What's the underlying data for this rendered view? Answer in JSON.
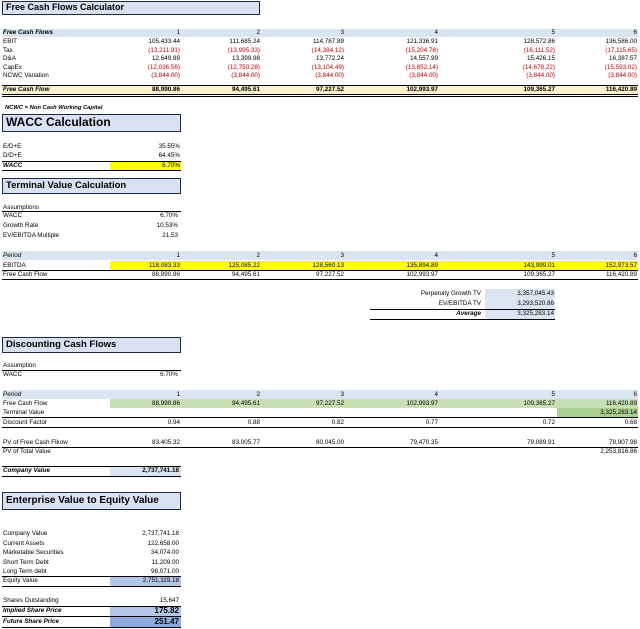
{
  "fcf": {
    "title": "Free Cash Flows Calculator",
    "header_label": "Free Cash Flows",
    "periods": [
      "1",
      "2",
      "3",
      "4",
      "5",
      "6"
    ],
    "rows": [
      {
        "label": "EBIT",
        "values": [
          "105,433.44",
          "111,685.24",
          "114,787.89",
          "121,336.91",
          "128,572.86",
          "136,586.00"
        ],
        "neg": false
      },
      {
        "label": "Tax",
        "values": [
          "(13,211.91)",
          "(13,995.33)",
          "(14,384.12)",
          "(15,204.78)",
          "(16,111.52)",
          "(17,115.65)"
        ],
        "neg": true
      },
      {
        "label": "D&A",
        "values": [
          "12,649.89",
          "13,399.98",
          "13,772.24",
          "14,557.99",
          "15,426.15",
          "16,387.57"
        ],
        "neg": false
      },
      {
        "label": "CapEx",
        "values": [
          "(12,036.56)",
          "(12,750.28)",
          "(13,104.49)",
          "(13,852.14)",
          "(14,678.22)",
          "(15,593.02)"
        ],
        "neg": true
      },
      {
        "label": "NCWC Variation",
        "values": [
          "(3,844.00)",
          "(3,844.00)",
          "(3,844.00)",
          "(3,844.00)",
          "(3,844.00)",
          "(3,844.00)"
        ],
        "neg": true
      }
    ],
    "total": {
      "label": "Free Cash Flow",
      "values": [
        "88,990.86",
        "94,495.61",
        "97,227.52",
        "102,993.97",
        "109,365.27",
        "116,420.89"
      ]
    },
    "note": "NCWC = Non Cash Working Capital"
  },
  "wacc": {
    "title": "WACC Calculation",
    "rows": [
      {
        "label": "E/D+E",
        "value": "35.55%"
      },
      {
        "label": "D/D+E",
        "value": "64.45%"
      }
    ],
    "total": {
      "label": "WACC",
      "value": "6.70%"
    }
  },
  "terminal": {
    "title": "Terminal Value Calculation",
    "assumptions_label": "Assumptions",
    "assumptions": [
      {
        "label": "WACC",
        "value": "6.70%"
      },
      {
        "label": "Growth Rate",
        "value": "10.53%"
      },
      {
        "label": "EV/EBITDA Multiple",
        "value": "21.53"
      }
    ],
    "period_label": "Period",
    "periods": [
      "1",
      "2",
      "3",
      "4",
      "5",
      "6"
    ],
    "ebitda_label": "EBITDA",
    "ebitda": [
      "118,083.33",
      "125,085.22",
      "128,560.13",
      "135,894.89",
      "143,999.01",
      "152,973.57"
    ],
    "fcf_label": "Free Cash Flow",
    "fcf": [
      "88,990.86",
      "94,495.61",
      "97,227.52",
      "102,993.97",
      "109,365.27",
      "116,420.89"
    ],
    "tv_rows": [
      {
        "label": "Perpetuity Growth TV",
        "value": "3,357,045.43"
      },
      {
        "label": "EV/EBITDA TV",
        "value": "3,293,520.86"
      }
    ],
    "tv_avg": {
      "label": "Average",
      "value": "3,325,283.14"
    }
  },
  "discount": {
    "title": "Discounting Cash Flows",
    "assumption_label": "Assumption",
    "wacc_label": "WACC",
    "wacc_value": "6.70%",
    "period_label": "Period",
    "periods": [
      "1",
      "2",
      "3",
      "4",
      "5",
      "6"
    ],
    "fcf_label": "Free Cash Flow",
    "fcf": [
      "88,990.86",
      "94,495.61",
      "97,227.52",
      "102,993.97",
      "109,365.27",
      "116,420.89"
    ],
    "tv_label": "Terminal Value",
    "tv_value": "3,325,283.14",
    "df_label": "Discount Factor",
    "df": [
      "0.94",
      "0.88",
      "0.82",
      "0.77",
      "0.72",
      "0.68"
    ],
    "pv_fcf_label": "PV of Free Cash Flkow",
    "pv_fcf": [
      "83,405.32",
      "83,005.77",
      "80,045.00",
      "79,470.35",
      "79,089.91",
      "78,907.98"
    ],
    "pv_tv_label": "PV of Total Value",
    "pv_tv_value": "2,253,816.86",
    "company_label": "Company Value",
    "company_value": "2,737,741.18"
  },
  "equity": {
    "title": "Enterprise Value to Equity Value",
    "rows": [
      {
        "label": "Company Value",
        "value": "2,737,741.18"
      },
      {
        "label": "Current Assets",
        "value": "122,658.00"
      },
      {
        "label": "Marketable Securities",
        "value": "34,074.00"
      },
      {
        "label": "Short Term Debt",
        "value": "11,209.00"
      },
      {
        "label": "Long Term debt",
        "value": "98,071.00"
      }
    ],
    "equity_label": "Equity Value",
    "equity_value": "2,751,119.18",
    "shares_label": "Shares Outstanding",
    "shares_value": "15,647",
    "implied_label": "Implied Share Price",
    "implied_value": "175.82",
    "future_label": "Future Share Price",
    "future_value": "251.47"
  }
}
